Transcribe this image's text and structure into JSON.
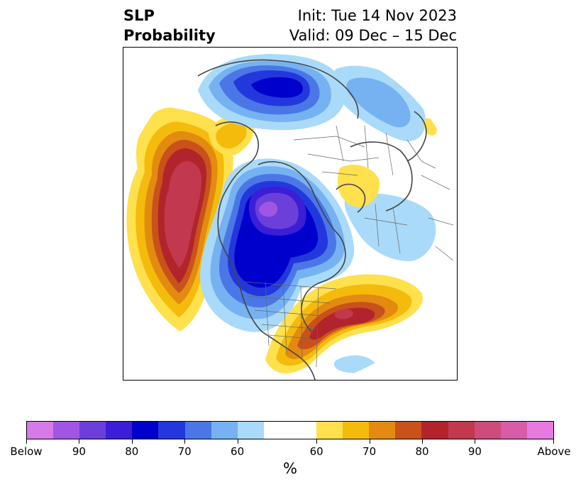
{
  "title": {
    "variable_line1": "SLP",
    "variable_line2": "Probability",
    "init_line": "Init: Tue 14 Nov 2023",
    "valid_line": "Valid: 09 Dec – 15 Dec"
  },
  "colorbar": {
    "unit_label": "%",
    "below_colors": [
      "#d67ae8",
      "#a155e4",
      "#6c3fdb",
      "#3b1ed6",
      "#0000cd",
      "#2238dd",
      "#4b77e6",
      "#76b2f2",
      "#aadaf9"
    ],
    "neutral_color": "#ffffff",
    "above_colors": [
      "#ffe04d",
      "#f4bb0c",
      "#e38b10",
      "#c9521b",
      "#b2242b",
      "#c2384f",
      "#cc4d7c",
      "#d85da8",
      "#e67ae0"
    ],
    "tick_labels": [
      "Below",
      "90",
      "80",
      "70",
      "60",
      "60",
      "70",
      "80",
      "90",
      "Above"
    ]
  }
}
